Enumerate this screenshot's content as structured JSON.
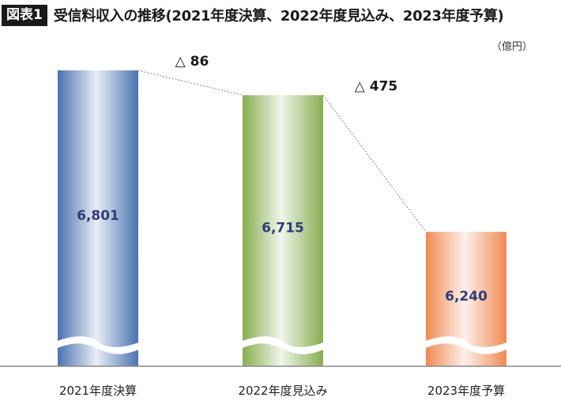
{
  "header": {
    "badge": "図表1",
    "title": "受信料収入の推移(2021年度決算、2022年度見込み、2023年度予算)"
  },
  "unit": "（億円）",
  "chart_data": {
    "type": "bar",
    "categories": [
      "2021年度決算",
      "2022年度見込み",
      "2023年度予算"
    ],
    "values": [
      6801,
      6715,
      6240
    ],
    "value_labels": [
      "6,801",
      "6,715",
      "6,240"
    ],
    "annotations": [
      {
        "from": 0,
        "to": 1,
        "text": "△ 86"
      },
      {
        "from": 1,
        "to": 2,
        "text": "△ 475"
      }
    ],
    "colors": [
      "#4a72b0",
      "#86ae4e",
      "#ef8a52"
    ],
    "axis_break": true,
    "value_label_color": "#2e3d7a",
    "legend": "none",
    "grid": false
  }
}
